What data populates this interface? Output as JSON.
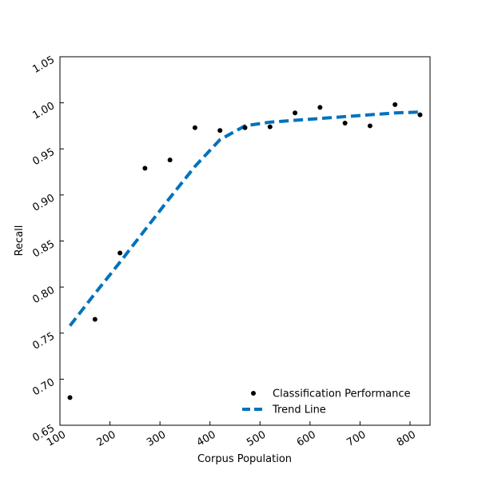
{
  "chart_data": {
    "type": "scatter",
    "title": "",
    "xlabel": "Corpus Population",
    "ylabel": "Recall",
    "xlim": [
      100,
      840
    ],
    "ylim": [
      0.65,
      1.05
    ],
    "x_ticks": [
      100,
      200,
      300,
      400,
      500,
      600,
      700,
      800
    ],
    "y_ticks": [
      0.65,
      0.7,
      0.75,
      0.8,
      0.85,
      0.9,
      0.95,
      1.0,
      1.05
    ],
    "x_tick_labels": [
      "100",
      "200",
      "300",
      "400",
      "500",
      "600",
      "700",
      "800"
    ],
    "y_tick_labels": [
      "0.65",
      "0.70",
      "0.75",
      "0.80",
      "0.85",
      "0.90",
      "0.95",
      "1.00",
      "1.05"
    ],
    "grid": false,
    "legend_position": "bottom-right",
    "series": [
      {
        "name": "Classification Performance",
        "kind": "scatter",
        "color": "#000000",
        "x": [
          120,
          170,
          220,
          270,
          320,
          370,
          420,
          470,
          520,
          570,
          620,
          670,
          720,
          770,
          820
        ],
        "y": [
          0.68,
          0.765,
          0.837,
          0.929,
          0.938,
          0.973,
          0.97,
          0.973,
          0.974,
          0.989,
          0.995,
          0.978,
          0.975,
          0.998,
          0.987
        ]
      },
      {
        "name": "Trend Line",
        "kind": "line",
        "style": "dashed",
        "color": "#0072bd",
        "x": [
          120,
          170,
          220,
          270,
          320,
          370,
          420,
          470,
          520,
          570,
          620,
          670,
          720,
          770,
          820
        ],
        "y": [
          0.758,
          0.793,
          0.827,
          0.862,
          0.897,
          0.931,
          0.96,
          0.975,
          0.979,
          0.981,
          0.983,
          0.985,
          0.987,
          0.989,
          0.99
        ]
      }
    ]
  }
}
